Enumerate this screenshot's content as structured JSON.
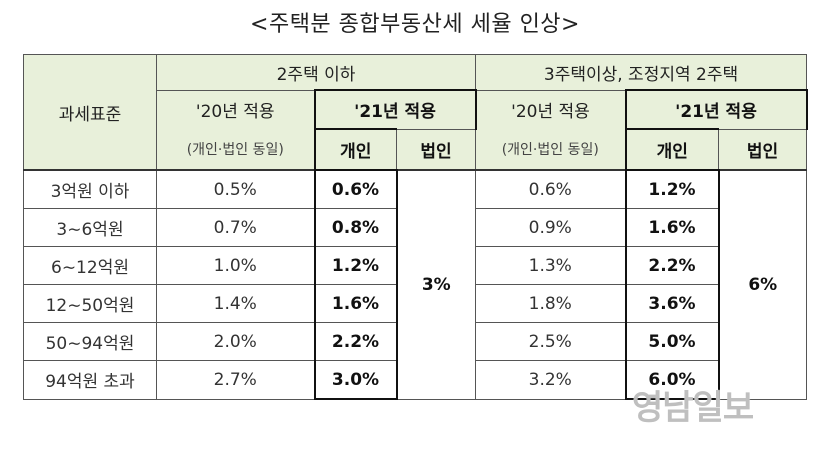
{
  "title": "<주택분 종합부동산세 세율 인상>",
  "header": {
    "base": "과세표준",
    "group1": "2주택 이하",
    "group2": "3주택이상, 조정지역 2주택",
    "y20": "'20년 적용",
    "y20_note": "(개인·법인 동일)",
    "y21": "'21년 적용",
    "individual": "개인",
    "corporate": "법인"
  },
  "rows": [
    {
      "bracket": "3억원 이하",
      "g1_2020": "0.5%",
      "g1_2021": "0.6%",
      "g2_2020": "0.6%",
      "g2_2021": "1.2%"
    },
    {
      "bracket": "3∼6억원",
      "g1_2020": "0.7%",
      "g1_2021": "0.8%",
      "g2_2020": "0.9%",
      "g2_2021": "1.6%"
    },
    {
      "bracket": "6∼12억원",
      "g1_2020": "1.0%",
      "g1_2021": "1.2%",
      "g2_2020": "1.3%",
      "g2_2021": "2.2%"
    },
    {
      "bracket": "12∼50억원",
      "g1_2020": "1.4%",
      "g1_2021": "1.6%",
      "g2_2020": "1.8%",
      "g2_2021": "3.6%"
    },
    {
      "bracket": "50∼94억원",
      "g1_2020": "2.0%",
      "g1_2021": "2.2%",
      "g2_2020": "2.5%",
      "g2_2021": "5.0%"
    },
    {
      "bracket": "94억원 초과",
      "g1_2020": "2.7%",
      "g1_2021": "3.0%",
      "g2_2020": "3.2%",
      "g2_2021": "6.0%"
    }
  ],
  "corporate_rate_g1": "3%",
  "corporate_rate_g2": "6%",
  "watermark": "영남일보"
}
